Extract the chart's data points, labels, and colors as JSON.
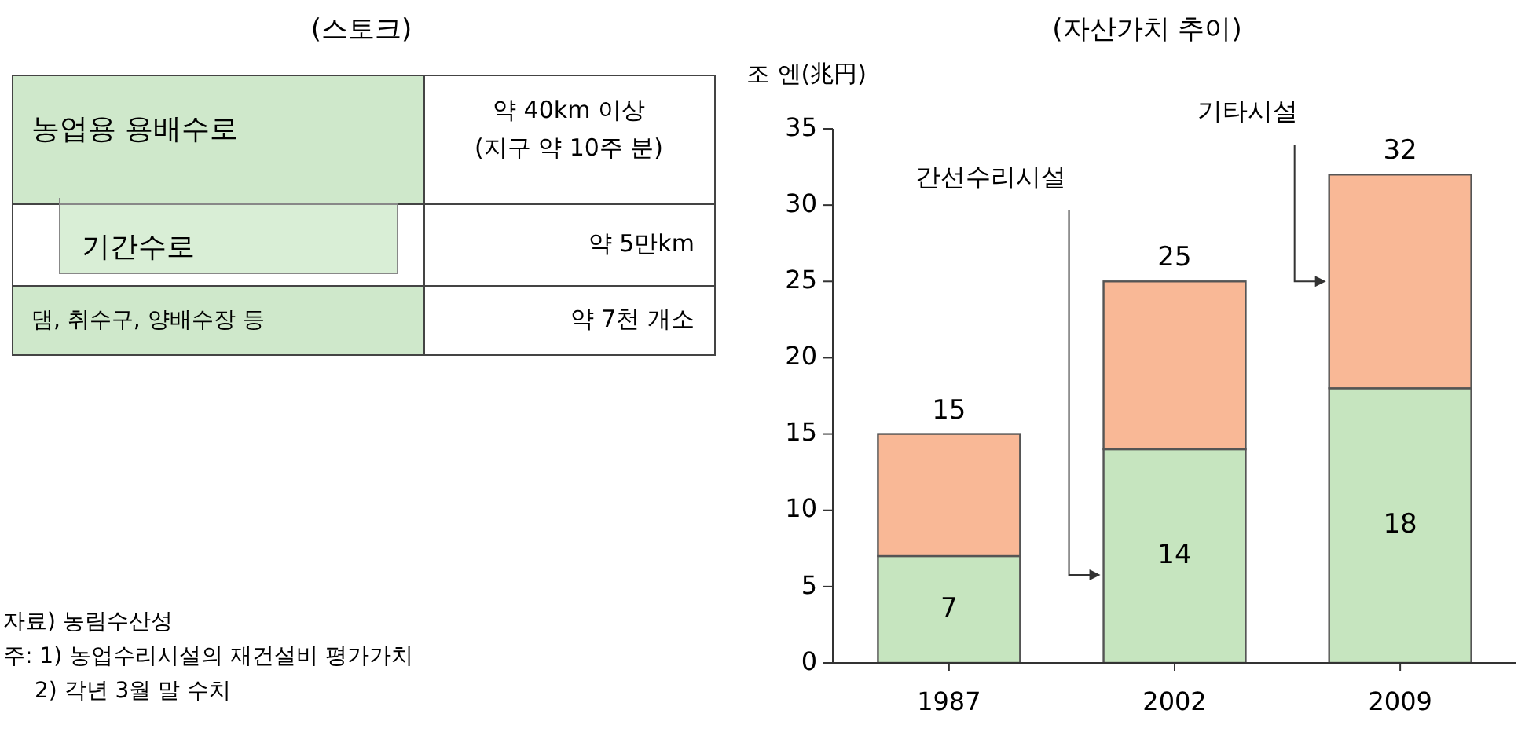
{
  "chart_data": [
    {
      "type": "other",
      "title": "(스토크)",
      "categories": [
        "농업용 용배수로",
        "기간수로",
        "댐, 취수구, 양배수장 등"
      ],
      "value_labels": [
        "약 40km 이상\n(지구 약 10주 분)",
        "약 5만km",
        "약 7천 개소"
      ],
      "annotations": [
        "자료) 농림수산성",
        "주: 1) 농업수리시설의 재건설비 평가가치",
        "2) 각년 3월 말 수치"
      ]
    },
    {
      "type": "bar",
      "title": "(자산가치 추이)",
      "ylabel": "조 엔(兆円)",
      "categories": [
        "1987",
        "2002",
        "2009"
      ],
      "stacked": true,
      "series": [
        {
          "name": "간선수리시설",
          "color": "#c6e5bf",
          "values": [
            7,
            14,
            18
          ],
          "value_labels": [
            "7",
            "14",
            "18"
          ]
        },
        {
          "name": "기타시설",
          "color": "#f9b896",
          "values": [
            8,
            11,
            14
          ]
        }
      ],
      "totals": [
        "15",
        "25",
        "32"
      ],
      "ylim": [
        0,
        35
      ],
      "yticks": [
        0,
        5,
        10,
        15,
        20,
        25,
        30,
        35
      ],
      "grid": false,
      "legend": false
    }
  ]
}
